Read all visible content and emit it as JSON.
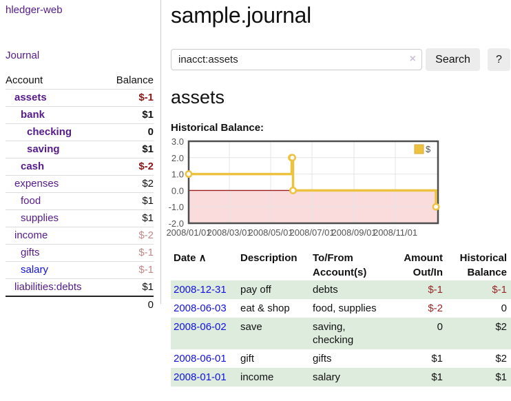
{
  "sidebar": {
    "brand": "hledger-web",
    "journal_link": "Journal",
    "table": {
      "account_header": "Account",
      "balance_header": "Balance",
      "accounts": [
        {
          "name": "assets",
          "depth": 1,
          "bold": true,
          "balance": "$-1",
          "balance_tone": "neg-strong",
          "link_tone": "visited"
        },
        {
          "name": "bank",
          "depth": 2,
          "bold": true,
          "balance": "$1",
          "balance_tone": "",
          "link_tone": "visited"
        },
        {
          "name": "checking",
          "depth": 3,
          "bold": true,
          "balance": "0",
          "balance_tone": "",
          "link_tone": "visited"
        },
        {
          "name": "saving",
          "depth": 3,
          "bold": true,
          "balance": "$1",
          "balance_tone": "",
          "link_tone": "visited"
        },
        {
          "name": "cash",
          "depth": 2,
          "bold": true,
          "balance": "$-2",
          "balance_tone": "neg-strong",
          "link_tone": "visited"
        },
        {
          "name": "expenses",
          "depth": 1,
          "bold": false,
          "balance": "$2",
          "balance_tone": "",
          "link_tone": "visited"
        },
        {
          "name": "food",
          "depth": 2,
          "bold": false,
          "balance": "$1",
          "balance_tone": "",
          "link_tone": "visited"
        },
        {
          "name": "supplies",
          "depth": 2,
          "bold": false,
          "balance": "$1",
          "balance_tone": "",
          "link_tone": "visited"
        },
        {
          "name": "income",
          "depth": 1,
          "bold": false,
          "balance": "$-2",
          "balance_tone": "neg-soft",
          "link_tone": "visited"
        },
        {
          "name": "gifts",
          "depth": 2,
          "bold": false,
          "balance": "$-1",
          "balance_tone": "neg-soft",
          "link_tone": "visited"
        },
        {
          "name": "salary",
          "depth": 2,
          "bold": false,
          "balance": "$-1",
          "balance_tone": "neg-soft",
          "link_tone": "unvisited"
        },
        {
          "name": "liabilities:debts",
          "depth": 1,
          "bold": false,
          "balance": "$1",
          "balance_tone": "",
          "link_tone": "visited"
        }
      ],
      "total": "0"
    }
  },
  "header": {
    "title": "sample.journal"
  },
  "search": {
    "query": "inacct:assets",
    "clear_icon": "×",
    "search_button": "Search",
    "help_button": "?"
  },
  "account_view": {
    "heading": "assets",
    "chart_heading": "Historical Balance:"
  },
  "chart_data": {
    "type": "line",
    "title": "Historical Balance",
    "step": true,
    "series": [
      {
        "name": "$",
        "color": "#edc240",
        "points": [
          [
            "2008-01-01",
            1
          ],
          [
            "2008-06-01",
            2
          ],
          [
            "2008-06-02",
            2
          ],
          [
            "2008-06-03",
            0
          ],
          [
            "2008-12-31",
            -1
          ]
        ]
      }
    ],
    "x_start": "2008-01-01",
    "x_span_days": 368,
    "x_ticks": [
      "2008/01/01",
      "2008/03/01",
      "2008/05/01",
      "2008/07/01",
      "2008/09/01",
      "2008/11/01"
    ],
    "y_ticks": [
      3.0,
      2.0,
      1.0,
      0.0,
      -1.0,
      -2.0
    ],
    "ylim": [
      -2,
      3
    ],
    "legend_position": "top-right",
    "zero_line_color": "#9b1c1c",
    "negative_region_color": "#fadcdc",
    "grid": true
  },
  "register": {
    "headers": [
      {
        "label": "Date",
        "align": "left",
        "sort_icon": "∧"
      },
      {
        "label": "Description",
        "align": "left"
      },
      {
        "label": "To/From\nAccount(s)",
        "align": "left"
      },
      {
        "label": "Amount\nOut/In",
        "align": "right"
      },
      {
        "label": "Historical\nBalance",
        "align": "right"
      }
    ],
    "rows": [
      {
        "date": "2008-12-31",
        "description": "pay off",
        "accounts": "debts",
        "amount": "$-1",
        "amount_negative": true,
        "balance": "$-1",
        "balance_negative": true
      },
      {
        "date": "2008-06-03",
        "description": "eat & shop",
        "accounts": "food, supplies",
        "amount": "$-2",
        "amount_negative": true,
        "balance": "0",
        "balance_negative": false
      },
      {
        "date": "2008-06-02",
        "description": "save",
        "accounts": "saving, checking",
        "amount": "0",
        "amount_negative": false,
        "balance": "$2",
        "balance_negative": false
      },
      {
        "date": "2008-06-01",
        "description": "gift",
        "accounts": "gifts",
        "amount": "$1",
        "amount_negative": false,
        "balance": "$2",
        "balance_negative": false
      },
      {
        "date": "2008-01-01",
        "description": "income",
        "accounts": "salary",
        "amount": "$1",
        "amount_negative": false,
        "balance": "$1",
        "balance_negative": false
      }
    ]
  },
  "colors": {
    "accent_purple": "#551a8b",
    "link_blue": "#1111dd",
    "negative_strong": "#8b1717",
    "negative_soft": "#c28989",
    "negative_table": "#972626",
    "row_stripe_green": "#deecde",
    "chart_line": "#edc240",
    "chart_negative_region": "#fadcdc"
  }
}
